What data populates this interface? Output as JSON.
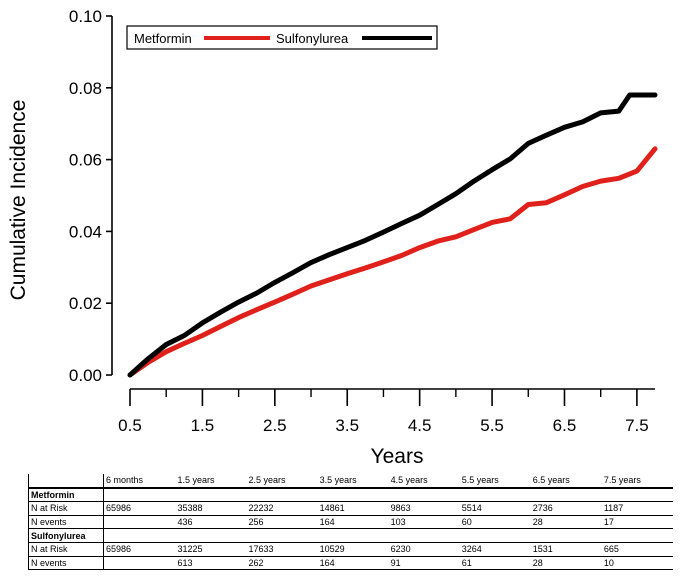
{
  "chart_data": {
    "type": "line",
    "title": "",
    "xlabel": "Years",
    "ylabel": "Cumulative Incidence",
    "xlim": [
      0.5,
      7.75
    ],
    "ylim": [
      0,
      0.1
    ],
    "x_ticks": [
      0.5,
      1.5,
      2.5,
      3.5,
      4.5,
      5.5,
      6.5,
      7.5
    ],
    "x_tick_labels": [
      "0.5",
      "1.5",
      "2.5",
      "3.5",
      "4.5",
      "5.5",
      "6.5",
      "7.5"
    ],
    "y_ticks": [
      0,
      0.02,
      0.04,
      0.06,
      0.08,
      0.1
    ],
    "y_tick_labels": [
      "0.00",
      "0.02",
      "0.04",
      "0.06",
      "0.08",
      "0.10"
    ],
    "legend_position": "top-left",
    "series": [
      {
        "name": "Metformin",
        "color": "#e0201a",
        "x": [
          0.5,
          0.75,
          1.0,
          1.25,
          1.5,
          1.75,
          2.0,
          2.25,
          2.5,
          2.75,
          3.0,
          3.25,
          3.5,
          3.75,
          4.0,
          4.25,
          4.5,
          4.75,
          5.0,
          5.25,
          5.5,
          5.75,
          6.0,
          6.25,
          6.5,
          6.75,
          7.0,
          7.25,
          7.5,
          7.75
        ],
        "y": [
          0.0,
          0.0035,
          0.0065,
          0.0088,
          0.011,
          0.0135,
          0.016,
          0.0182,
          0.0203,
          0.0225,
          0.0248,
          0.0265,
          0.0282,
          0.0298,
          0.0315,
          0.0333,
          0.0355,
          0.0373,
          0.0385,
          0.0405,
          0.0425,
          0.0435,
          0.0475,
          0.048,
          0.0502,
          0.0525,
          0.054,
          0.0548,
          0.0568,
          0.063
        ]
      },
      {
        "name": "Sulfonylurea",
        "color": "#000000",
        "x": [
          0.5,
          0.75,
          1.0,
          1.25,
          1.5,
          1.75,
          2.0,
          2.25,
          2.5,
          2.75,
          3.0,
          3.25,
          3.5,
          3.75,
          4.0,
          4.25,
          4.5,
          4.75,
          5.0,
          5.25,
          5.5,
          5.75,
          6.0,
          6.25,
          6.5,
          6.75,
          7.0,
          7.25,
          7.4,
          7.75
        ],
        "y": [
          0.0,
          0.0045,
          0.0085,
          0.011,
          0.0145,
          0.0175,
          0.0203,
          0.0228,
          0.0258,
          0.0285,
          0.0313,
          0.0335,
          0.0355,
          0.0375,
          0.0398,
          0.0422,
          0.0445,
          0.0475,
          0.0505,
          0.054,
          0.0572,
          0.0602,
          0.0645,
          0.0668,
          0.069,
          0.0705,
          0.073,
          0.0735,
          0.078,
          0.078
        ]
      }
    ]
  },
  "risk_table": {
    "columns": [
      "6 months",
      "1.5 years",
      "2.5 years",
      "3.5 years",
      "4.5 years",
      "5.5 years",
      "6.5 years",
      "7.5 years"
    ],
    "groups": [
      {
        "name": "Metformin",
        "rows": [
          {
            "label": "N at Risk",
            "values": [
              "65986",
              "35388",
              "22232",
              "14861",
              "9863",
              "5514",
              "2736",
              "1187"
            ]
          },
          {
            "label": "N events",
            "values": [
              "",
              "436",
              "256",
              "164",
              "103",
              "60",
              "28",
              "17"
            ]
          }
        ]
      },
      {
        "name": "Sulfonylurea",
        "rows": [
          {
            "label": "N at Risk",
            "values": [
              "65986",
              "31225",
              "17633",
              "10529",
              "6230",
              "3264",
              "1531",
              "665"
            ]
          },
          {
            "label": "N events",
            "values": [
              "",
              "613",
              "262",
              "164",
              "91",
              "61",
              "28",
              "10"
            ]
          }
        ]
      }
    ]
  }
}
